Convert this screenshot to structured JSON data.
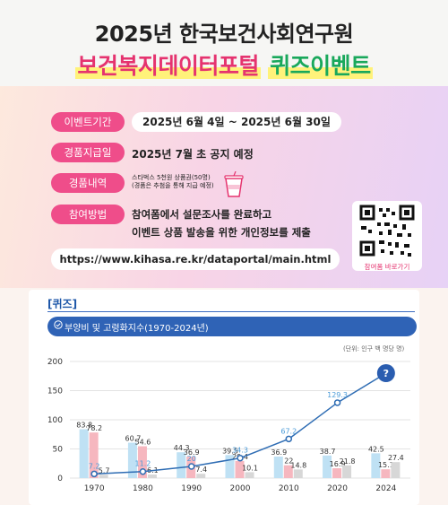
{
  "header": {
    "title_line1": "2025년 한국보건사회연구원",
    "title_line2_part1": "보건복지데이터포털",
    "title_line2_part2": "퀴즈이벤트"
  },
  "info": {
    "period_label": "이벤트기간",
    "period_value": "2025년 6월 4일 ~ 2025년 6월 30일",
    "announce_label": "경품지급일",
    "announce_value": "2025년 7월 초 공지 예정",
    "prize_label": "경품내역",
    "prize_line1": "스타벅스 5천원 상품권(50명)",
    "prize_line2": "(경품은 추첨을 통해 지급 예정)",
    "how_label": "참여방법",
    "how_line1": "참여폼에서 설문조사를 완료하고",
    "how_line2": "이벤트 상품 발송을 위한 개인정보를 제출",
    "url": "https://www.kihasa.re.kr/dataportal/main.html",
    "qr_caption": "참여폼 바로가기"
  },
  "quiz": {
    "tag": "[퀴즈]",
    "subtitle": "부양비 및 고령화지수(1970-2024년)",
    "unit": "(단위: 인구 백 명당 명)"
  },
  "colors": {
    "pink": "#ef4d8a",
    "blue_bar": "#bfe1f4",
    "pink_bar": "#f6b7bf",
    "gray_bar": "#d7d7d7",
    "line": "#2f6db4",
    "header_blue": "#2f63b6"
  },
  "chart_data": {
    "type": "bar",
    "categories": [
      "1970",
      "1980",
      "1990",
      "2000",
      "2010",
      "2020",
      "2024"
    ],
    "ylim": [
      0,
      200
    ],
    "yticks": [
      0,
      50,
      100,
      150,
      200
    ],
    "series": [
      {
        "values": [
          83.8,
          60.7,
          44.3,
          39.5,
          36.9,
          38.7,
          42.5
        ]
      },
      {
        "values": [
          78.2,
          54.6,
          36.9,
          29.4,
          22,
          16.9,
          15.1
        ]
      },
      {
        "values": [
          5.7,
          6.1,
          7.4,
          10.1,
          14.8,
          21.8,
          27.4
        ]
      },
      {
        "type": "line",
        "values": [
          7.2,
          11.2,
          20,
          34.3,
          67.2,
          129.3,
          null
        ],
        "last_label": "?"
      }
    ]
  }
}
